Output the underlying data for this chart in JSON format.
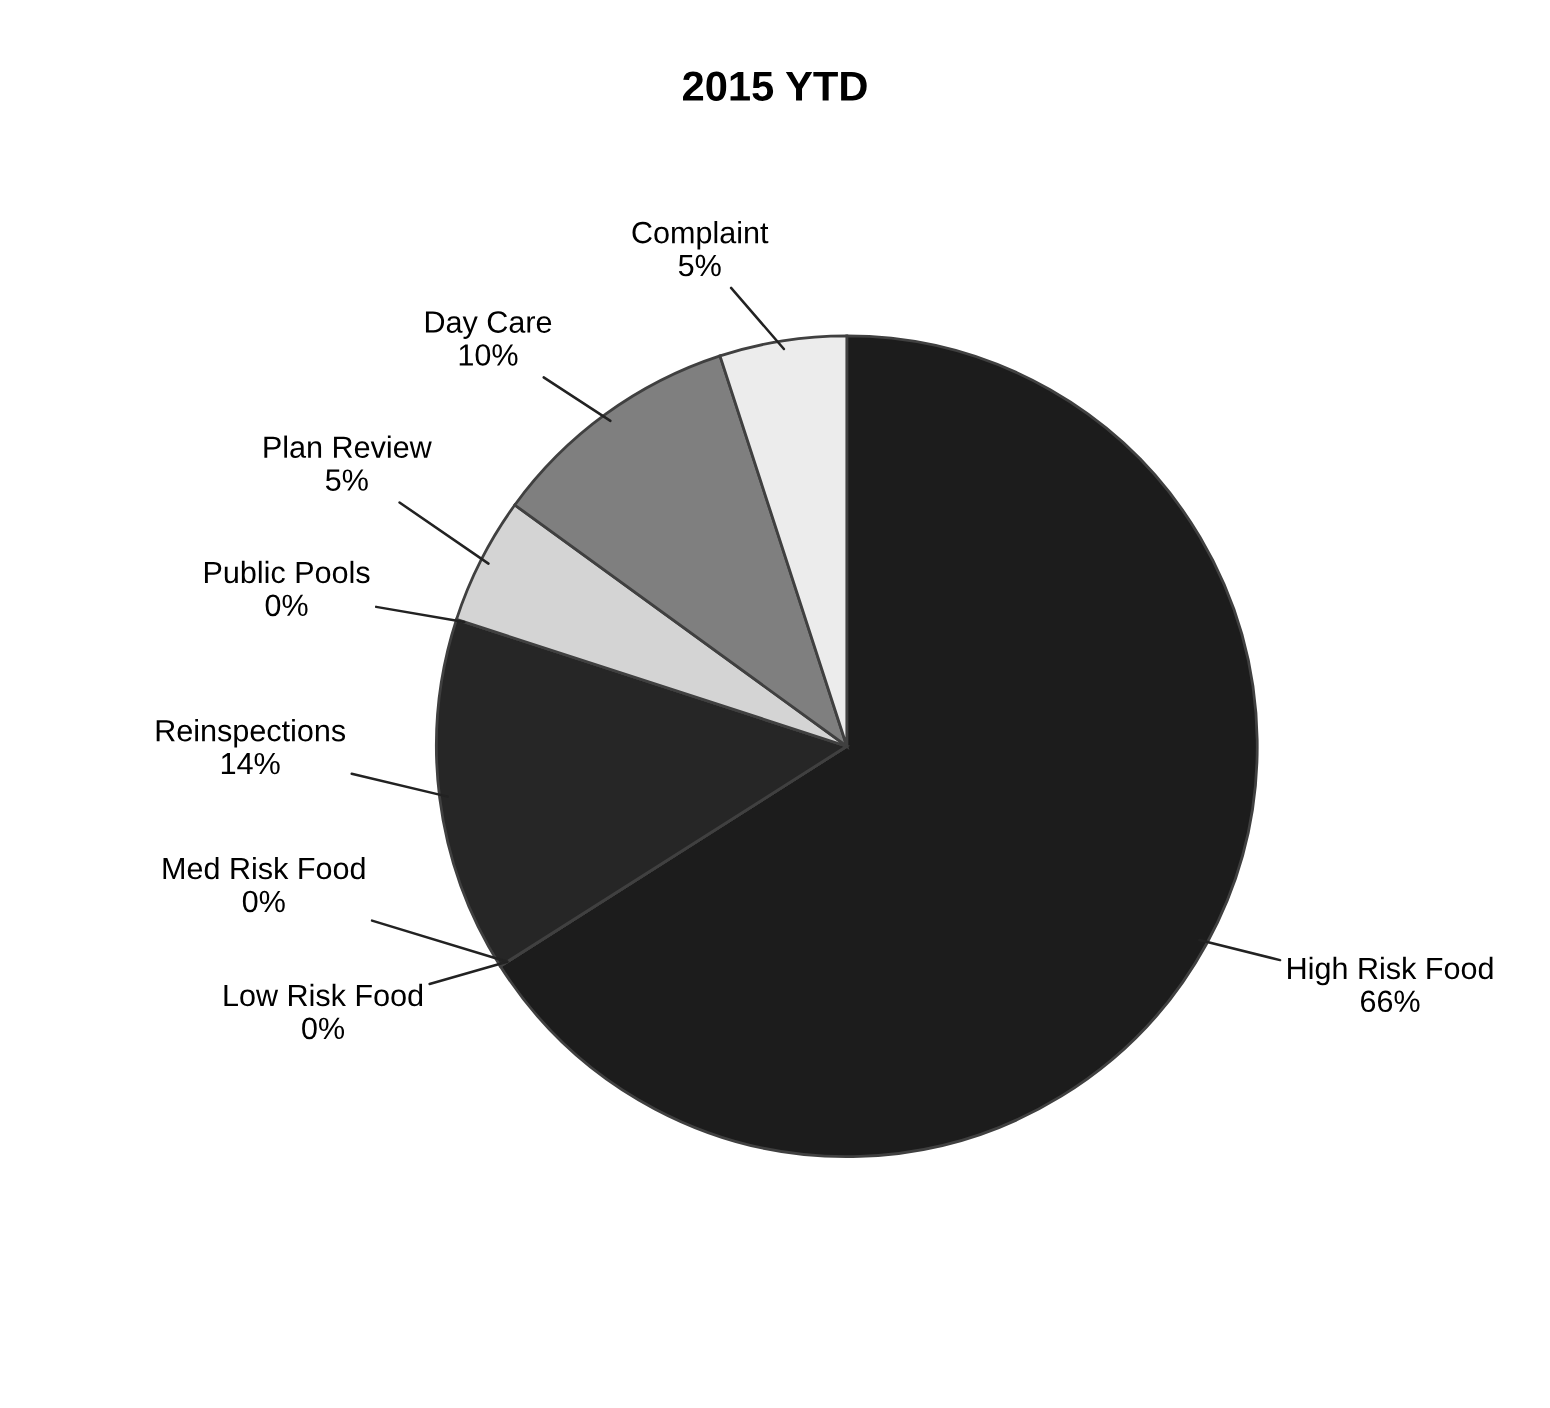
{
  "chart_data": {
    "type": "pie",
    "title": "2015 YTD",
    "categories": [
      "High Risk Food",
      "Low Risk Food",
      "Med Risk Food",
      "Reinspections",
      "Public Pools",
      "Plan Review",
      "Day Care",
      "Complaint"
    ],
    "values": [
      66,
      0,
      0,
      14,
      0,
      5,
      10,
      5
    ],
    "value_labels": [
      "66%",
      "0%",
      "0%",
      "14%",
      "0%",
      "5%",
      "10%",
      "5%"
    ],
    "colors": [
      "#1c1c1c",
      "#1c1c1c",
      "#1c1c1c",
      "#262626",
      "#bfbfbf",
      "#d4d4d4",
      "#7f7f7f",
      "#ececec"
    ]
  }
}
